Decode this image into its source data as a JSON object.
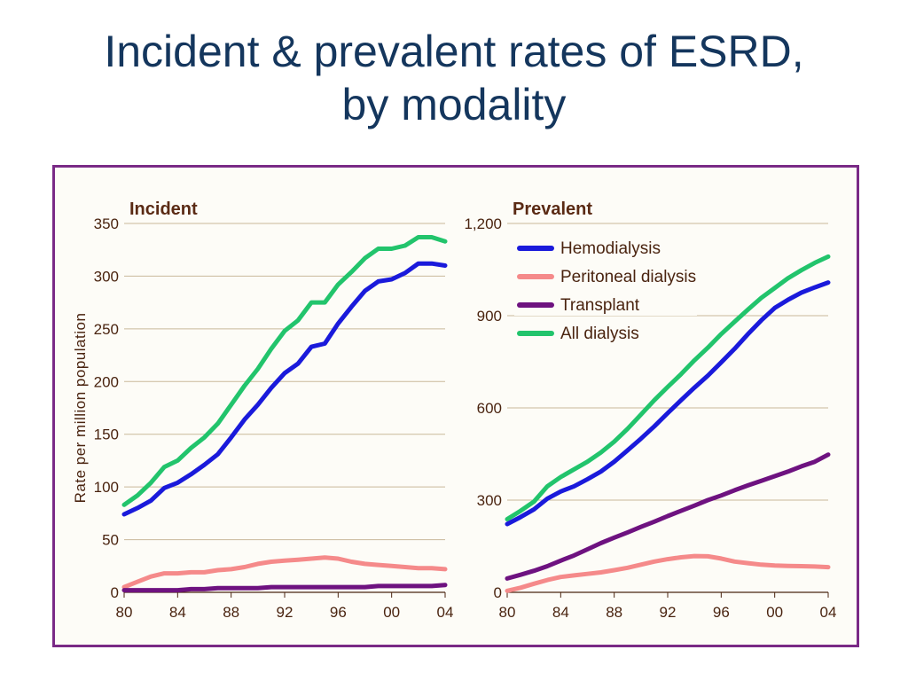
{
  "slide": {
    "title_line1": "Incident & prevalent rates of ESRD,",
    "title_line2": "by modality"
  },
  "colors": {
    "frame": "#7a2a86",
    "title": "#14365d",
    "text": "#4a2410",
    "grid": "#c9b99a"
  },
  "chart_data": [
    {
      "type": "line",
      "title": "Incident",
      "ylabel": "Rate per million population",
      "xlabel": "",
      "x": [
        1980,
        1981,
        1982,
        1983,
        1984,
        1985,
        1986,
        1987,
        1988,
        1989,
        1990,
        1991,
        1992,
        1993,
        1994,
        1995,
        1996,
        1997,
        1998,
        1999,
        2000,
        2001,
        2002,
        2003,
        2004
      ],
      "xticks": [
        1980,
        1984,
        1988,
        1992,
        1996,
        2000,
        2004
      ],
      "xtick_labels": [
        "80",
        "84",
        "88",
        "92",
        "96",
        "00",
        "04"
      ],
      "xlim": [
        1980,
        2004
      ],
      "ylim": [
        0,
        350
      ],
      "yticks": [
        0,
        50,
        100,
        150,
        200,
        250,
        300,
        350
      ],
      "ytick_labels": [
        "0",
        "50",
        "100",
        "150",
        "200",
        "250",
        "300",
        "350"
      ],
      "grid": true,
      "series": [
        {
          "key": "hd",
          "color": "#1a1adb",
          "values": [
            74,
            80,
            87,
            99,
            104,
            112,
            121,
            131,
            147,
            164,
            178,
            194,
            208,
            217,
            233,
            236,
            255,
            271,
            286,
            295,
            297,
            303,
            312,
            312,
            310
          ]
        },
        {
          "key": "pd",
          "color": "#f58a8a",
          "values": [
            5,
            10,
            15,
            18,
            18,
            19,
            19,
            21,
            22,
            24,
            27,
            29,
            30,
            31,
            32,
            33,
            32,
            29,
            27,
            26,
            25,
            24,
            23,
            23,
            22
          ]
        },
        {
          "key": "tx",
          "color": "#6e1280",
          "values": [
            2,
            2,
            2,
            2,
            2,
            3,
            3,
            4,
            4,
            4,
            4,
            5,
            5,
            5,
            5,
            5,
            5,
            5,
            5,
            6,
            6,
            6,
            6,
            6,
            7
          ]
        },
        {
          "key": "all",
          "color": "#22c46c",
          "values": [
            83,
            92,
            104,
            119,
            125,
            137,
            147,
            160,
            178,
            196,
            212,
            231,
            248,
            258,
            275,
            275,
            292,
            304,
            317,
            326,
            326,
            329,
            337,
            337,
            333
          ]
        }
      ]
    },
    {
      "type": "line",
      "title": "Prevalent",
      "ylabel": "",
      "xlabel": "",
      "x": [
        1980,
        1981,
        1982,
        1983,
        1984,
        1985,
        1986,
        1987,
        1988,
        1989,
        1990,
        1991,
        1992,
        1993,
        1994,
        1995,
        1996,
        1997,
        1998,
        1999,
        2000,
        2001,
        2002,
        2003,
        2004
      ],
      "xticks": [
        1980,
        1984,
        1988,
        1992,
        1996,
        2000,
        2004
      ],
      "xtick_labels": [
        "80",
        "84",
        "88",
        "92",
        "96",
        "00",
        "04"
      ],
      "xlim": [
        1980,
        2004
      ],
      "ylim": [
        0,
        1200
      ],
      "yticks": [
        0,
        300,
        600,
        900,
        1200
      ],
      "ytick_labels": [
        "0",
        "300",
        "600",
        "900",
        "1,200"
      ],
      "grid": true,
      "legend_position": "top-left",
      "series": [
        {
          "key": "hd",
          "name": "Hemodialysis",
          "color": "#1a1adb",
          "values": [
            222,
            245,
            270,
            305,
            328,
            345,
            368,
            393,
            425,
            462,
            500,
            540,
            583,
            625,
            666,
            705,
            748,
            792,
            840,
            885,
            925,
            952,
            975,
            992,
            1008
          ]
        },
        {
          "key": "pd",
          "name": "Peritoneal dialysis",
          "color": "#f58a8a",
          "values": [
            5,
            15,
            28,
            40,
            50,
            55,
            60,
            65,
            72,
            80,
            90,
            100,
            108,
            114,
            118,
            117,
            110,
            100,
            95,
            90,
            87,
            86,
            85,
            84,
            82
          ]
        },
        {
          "key": "tx",
          "name": "Transplant",
          "color": "#6e1280",
          "values": [
            45,
            57,
            70,
            85,
            103,
            120,
            140,
            160,
            178,
            195,
            213,
            230,
            248,
            265,
            282,
            300,
            315,
            332,
            348,
            363,
            378,
            393,
            410,
            425,
            448
          ]
        },
        {
          "key": "all",
          "name": "All dialysis",
          "color": "#22c46c",
          "values": [
            238,
            265,
            295,
            345,
            375,
            400,
            425,
            455,
            490,
            532,
            578,
            625,
            668,
            710,
            755,
            796,
            840,
            880,
            920,
            958,
            990,
            1022,
            1048,
            1072,
            1092
          ]
        }
      ]
    }
  ]
}
